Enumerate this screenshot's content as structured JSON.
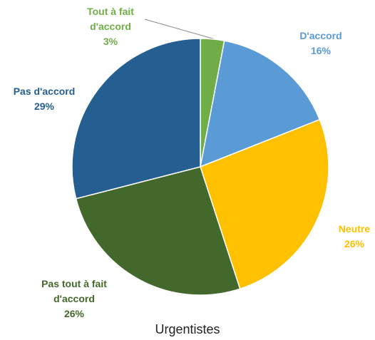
{
  "chart_data": {
    "type": "pie",
    "title": "Urgentistes",
    "categories": [
      "Tout à fait d'accord",
      "D'accord",
      "Neutre",
      "Pas tout à fait d'accord",
      "Pas d'accord"
    ],
    "values": [
      3,
      16,
      26,
      26,
      29
    ],
    "value_labels": [
      "3%",
      "16%",
      "26%",
      "26%",
      "29%"
    ],
    "colors": [
      "#70ad47",
      "#5b9bd5",
      "#ffc000",
      "#43682b",
      "#255e91"
    ]
  }
}
